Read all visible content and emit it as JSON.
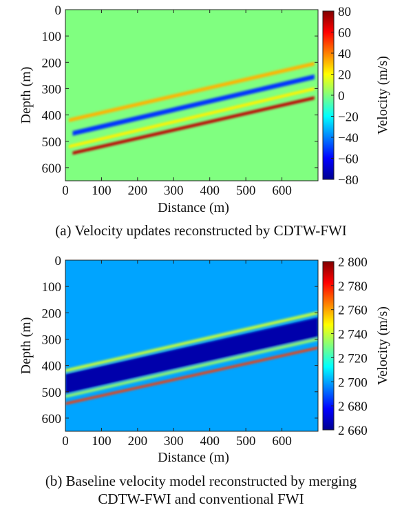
{
  "chart_data": [
    {
      "type": "heatmap",
      "caption": "(a) Velocity updates reconstructed by CDTW-FWI",
      "xlabel": "Distance (m)",
      "ylabel": "Depth (m)",
      "xlim": [
        0,
        700
      ],
      "ylim": [
        0,
        650
      ],
      "y_inverted": true,
      "x_ticks": [
        "0",
        "100",
        "200",
        "300",
        "400",
        "500",
        "600"
      ],
      "x_tick_values": [
        0,
        100,
        200,
        300,
        400,
        500,
        600
      ],
      "y_ticks": [
        "0",
        "100",
        "200",
        "300",
        "400",
        "500",
        "600"
      ],
      "y_tick_values": [
        0,
        100,
        200,
        300,
        400,
        500,
        600
      ],
      "colorbar": {
        "label": "Velocity (m/s)",
        "range": [
          -80,
          80
        ],
        "ticks": [
          "80",
          "60",
          "40",
          "20",
          "0",
          "−20",
          "−40",
          "−60",
          "−80"
        ],
        "tick_values": [
          80,
          60,
          40,
          20,
          0,
          -20,
          -40,
          -60,
          -80
        ],
        "colormap": "jet"
      },
      "background_value": 0,
      "layers": [
        {
          "x_start": 10,
          "depth_start": 420,
          "x_end": 690,
          "depth_end": 205,
          "thickness": 14,
          "value": 32
        },
        {
          "x_start": 20,
          "depth_start": 470,
          "x_end": 690,
          "depth_end": 255,
          "thickness": 18,
          "value": -52
        },
        {
          "x_start": 10,
          "depth_start": 520,
          "x_end": 690,
          "depth_end": 300,
          "thickness": 12,
          "value": 22
        },
        {
          "x_start": 20,
          "depth_start": 545,
          "x_end": 690,
          "depth_end": 335,
          "thickness": 12,
          "value": 70
        }
      ]
    },
    {
      "type": "heatmap",
      "caption_line1": "(b) Baseline velocity model reconstructed by merging",
      "caption_line2": "CDTW-FWI and conventional FWI",
      "xlabel": "Distance (m)",
      "ylabel": "Depth (m)",
      "xlim": [
        0,
        700
      ],
      "ylim": [
        0,
        650
      ],
      "y_inverted": true,
      "x_ticks": [
        "0",
        "100",
        "200",
        "300",
        "400",
        "500",
        "600"
      ],
      "x_tick_values": [
        0,
        100,
        200,
        300,
        400,
        500,
        600
      ],
      "y_ticks": [
        "0",
        "100",
        "200",
        "300",
        "400",
        "500",
        "600"
      ],
      "y_tick_values": [
        0,
        100,
        200,
        300,
        400,
        500,
        600
      ],
      "colorbar": {
        "label": "Velocity (m/s)",
        "range": [
          2660,
          2800
        ],
        "ticks": [
          "2 800",
          "2 780",
          "2 760",
          "2 740",
          "2 720",
          "2 700",
          "2 680",
          "2 660"
        ],
        "tick_values": [
          2800,
          2780,
          2760,
          2740,
          2720,
          2700,
          2680,
          2660
        ],
        "colormap": "jet"
      },
      "background_value": 2700,
      "layers": [
        {
          "x_start": 0,
          "depth_start": 420,
          "x_end": 700,
          "depth_end": 200,
          "thickness": 12,
          "value": 2740
        },
        {
          "x_start": 0,
          "depth_start": 470,
          "x_end": 700,
          "depth_end": 255,
          "thickness": 75,
          "value": 2666
        },
        {
          "x_start": 0,
          "depth_start": 518,
          "x_end": 700,
          "depth_end": 300,
          "thickness": 10,
          "value": 2735
        },
        {
          "x_start": 0,
          "depth_start": 545,
          "x_end": 700,
          "depth_end": 333,
          "thickness": 9,
          "value": 2775
        }
      ]
    }
  ]
}
